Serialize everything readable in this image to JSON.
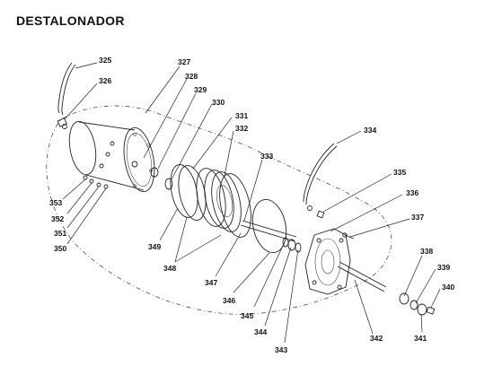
{
  "diagram": {
    "title": "DESTALONADOR",
    "parts": [
      {
        "num": "325"
      },
      {
        "num": "326"
      },
      {
        "num": "327"
      },
      {
        "num": "328"
      },
      {
        "num": "329"
      },
      {
        "num": "330"
      },
      {
        "num": "331"
      },
      {
        "num": "332"
      },
      {
        "num": "333"
      },
      {
        "num": "334"
      },
      {
        "num": "335"
      },
      {
        "num": "336"
      },
      {
        "num": "337"
      },
      {
        "num": "338"
      },
      {
        "num": "339"
      },
      {
        "num": "340"
      },
      {
        "num": "341"
      },
      {
        "num": "342"
      },
      {
        "num": "343"
      },
      {
        "num": "344"
      },
      {
        "num": "345"
      },
      {
        "num": "346"
      },
      {
        "num": "347"
      },
      {
        "num": "348"
      },
      {
        "num": "349"
      },
      {
        "num": "350"
      },
      {
        "num": "351"
      },
      {
        "num": "352"
      },
      {
        "num": "353"
      }
    ]
  }
}
